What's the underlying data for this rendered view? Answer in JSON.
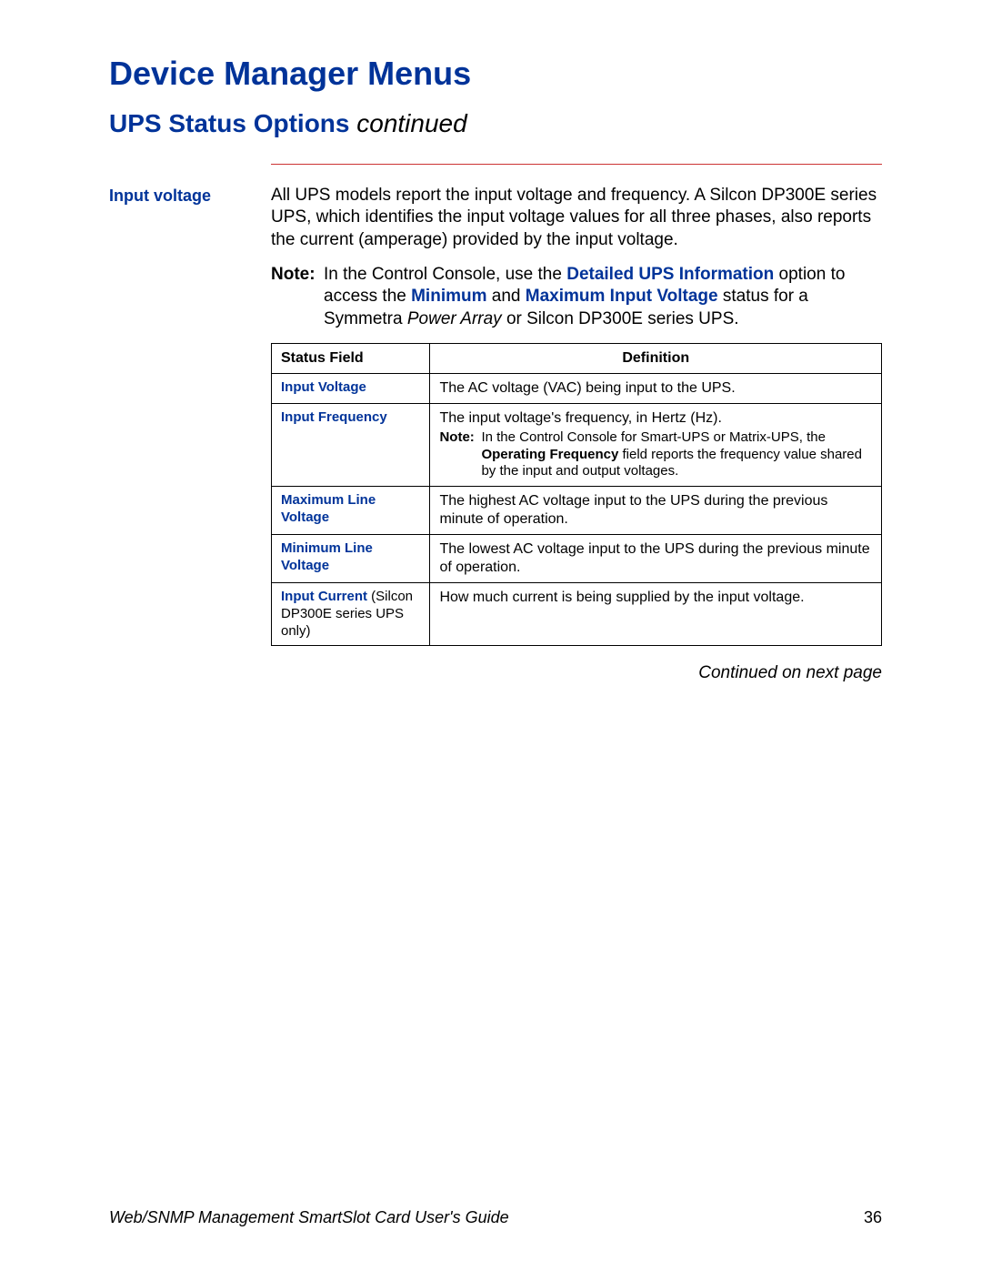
{
  "colors": {
    "heading_blue": "#003399",
    "rule_red": "#cc3333",
    "text": "#000000",
    "background": "#ffffff",
    "table_border": "#000000"
  },
  "typography": {
    "body_fontsize_pt": 14,
    "chapter_fontsize_pt": 27,
    "section_fontsize_pt": 21,
    "table_fontsize_pt": 12
  },
  "chapter_title": "Device Manager Menus",
  "section": {
    "title": "UPS Status Options",
    "continued_suffix": " continued"
  },
  "side_label": "Input voltage",
  "intro_paragraph": "All UPS models report the input voltage and frequency. A Silcon DP300E series UPS, which identifies the input voltage values for all three phases, also reports the current (amperage) provided by the input voltage.",
  "note": {
    "label": "Note:",
    "runs": [
      {
        "t": "In the Control Console, use the "
      },
      {
        "t": "Detailed UPS Information",
        "style": "bold-blue"
      },
      {
        "t": " option to access the "
      },
      {
        "t": "Minimum",
        "style": "bold-blue"
      },
      {
        "t": " and "
      },
      {
        "t": "Maximum Input Voltage",
        "style": "bold-blue"
      },
      {
        "t": " status for a Symmetra "
      },
      {
        "t": "Power Array",
        "style": "italic"
      },
      {
        "t": " or Silcon DP300E series UPS."
      }
    ]
  },
  "table": {
    "columns": [
      "Status Field",
      "Definition"
    ],
    "col_widths_pct": [
      26,
      74
    ],
    "rows": [
      {
        "field_runs": [
          {
            "t": "Input Voltage",
            "style": "field-blue"
          }
        ],
        "definition_main": "The AC voltage (VAC) being input to the UPS.",
        "definition_note": null
      },
      {
        "field_runs": [
          {
            "t": "Input Frequency",
            "style": "field-blue"
          }
        ],
        "definition_main": "The input voltage's frequency, in Hertz (Hz).",
        "definition_note": {
          "label": "Note:",
          "runs": [
            {
              "t": "In the Control Console for Smart-UPS or Matrix-UPS, the "
            },
            {
              "t": "Operating Frequency",
              "style": "bold"
            },
            {
              "t": " field reports the frequency value shared by the input and output voltages."
            }
          ]
        }
      },
      {
        "field_runs": [
          {
            "t": "Maximum Line Voltage",
            "style": "field-blue"
          }
        ],
        "definition_main": "The highest AC voltage input to the UPS during the previous minute of operation.",
        "definition_note": null
      },
      {
        "field_runs": [
          {
            "t": "Minimum Line Voltage",
            "style": "field-blue"
          }
        ],
        "definition_main": "The lowest AC voltage input to the UPS during the previous minute of operation.",
        "definition_note": null
      },
      {
        "field_runs": [
          {
            "t": "Input Current",
            "style": "field-blue"
          },
          {
            "t": " (Silcon DP300E series UPS only)",
            "style": "field-note"
          }
        ],
        "definition_main": "How much current is being supplied by the input voltage.",
        "definition_note": null
      }
    ]
  },
  "continued_text": "Continued on next page",
  "footer": {
    "guide": "Web/SNMP Management SmartSlot Card User's Guide",
    "page_number": "36"
  }
}
